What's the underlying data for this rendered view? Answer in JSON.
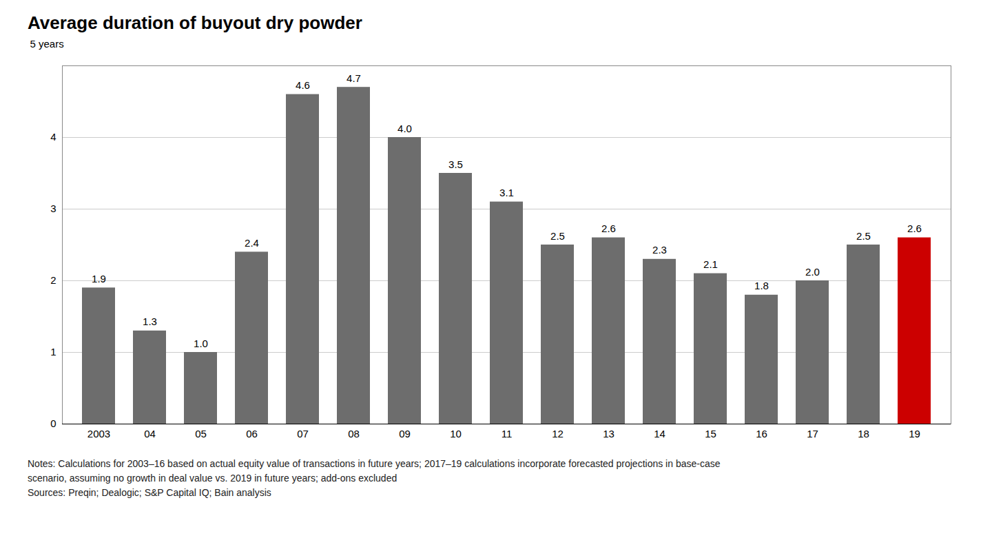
{
  "chart_data": {
    "type": "bar",
    "title": "Average duration of buyout dry powder",
    "ylabel": "5 years",
    "categories": [
      "2003",
      "04",
      "05",
      "06",
      "07",
      "08",
      "09",
      "10",
      "11",
      "12",
      "13",
      "14",
      "15",
      "16",
      "17",
      "18",
      "19"
    ],
    "values": [
      1.9,
      1.3,
      1.0,
      2.4,
      4.6,
      4.7,
      4.0,
      3.5,
      3.1,
      2.5,
      2.6,
      2.3,
      2.1,
      1.8,
      2.0,
      2.5,
      2.6
    ],
    "value_labels": [
      "1.9",
      "1.3",
      "1.0",
      "2.4",
      "4.6",
      "4.7",
      "4.0",
      "3.5",
      "3.1",
      "2.5",
      "2.6",
      "2.3",
      "2.1",
      "1.8",
      "2.0",
      "2.5",
      "2.6"
    ],
    "colors": [
      "#6d6d6d",
      "#6d6d6d",
      "#6d6d6d",
      "#6d6d6d",
      "#6d6d6d",
      "#6d6d6d",
      "#6d6d6d",
      "#6d6d6d",
      "#6d6d6d",
      "#6d6d6d",
      "#6d6d6d",
      "#6d6d6d",
      "#6d6d6d",
      "#6d6d6d",
      "#6d6d6d",
      "#6d6d6d",
      "#cc0000"
    ],
    "ylim": [
      0,
      5
    ],
    "yticks": [
      0,
      1,
      2,
      3,
      4
    ],
    "grid": true,
    "data_labels": true,
    "notes": [
      "Notes: Calculations for 2003–16 based on actual equity value of transactions in future years; 2017–19 calculations incorporate forecasted projections in base-case",
      "scenario, assuming no growth in deal value vs. 2019 in future years; add-ons excluded",
      "Sources: Preqin; Dealogic; S&P Capital IQ; Bain analysis"
    ]
  }
}
